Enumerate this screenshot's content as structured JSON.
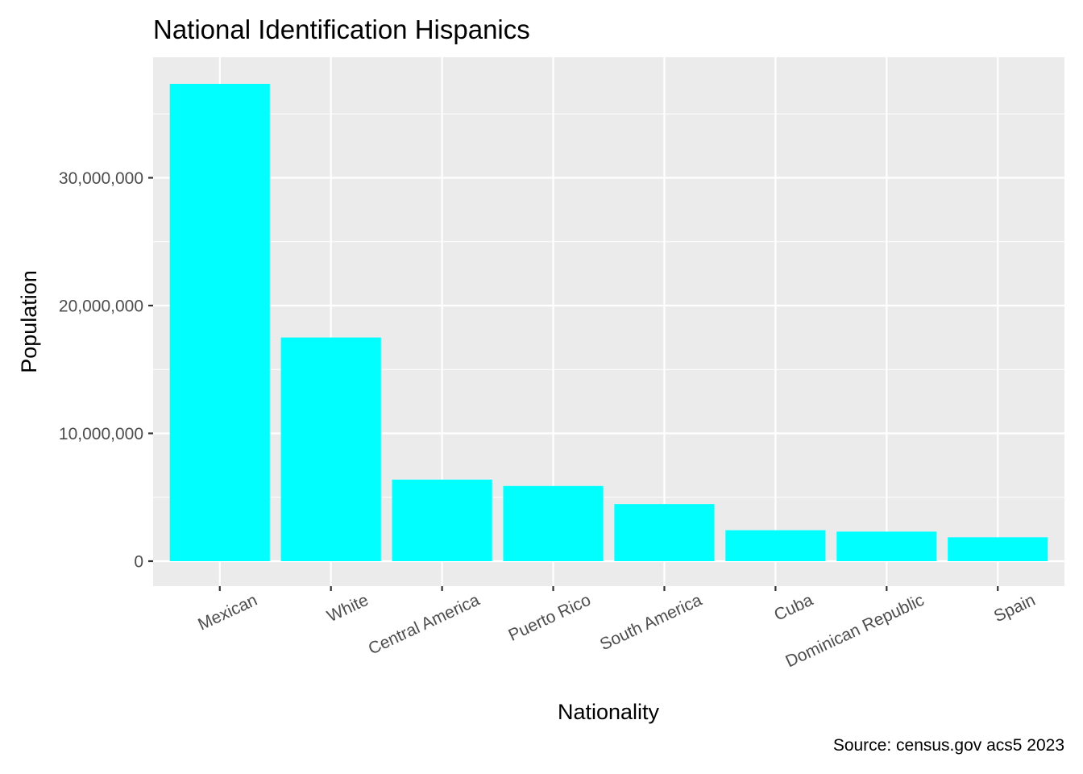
{
  "chart_data": {
    "type": "bar",
    "title": "National Identification Hispanics",
    "xlabel": "Nationality",
    "ylabel": "Population",
    "caption": "Source: census.gov acs5 2023",
    "categories": [
      "Mexican",
      "White",
      "Central America",
      "Puerto Rico",
      "South America",
      "Cuba",
      "Dominican Republic",
      "Spain"
    ],
    "values": [
      37350000,
      17500000,
      6380000,
      5880000,
      4470000,
      2420000,
      2310000,
      1870000
    ],
    "ylim": [
      0,
      39300000
    ],
    "yticks": [
      0,
      10000000,
      20000000,
      30000000
    ],
    "ytick_labels": [
      "0",
      "10,000,000",
      "20,000,000",
      "30,000,000"
    ],
    "grid": true,
    "legend": "none",
    "bar_color": "#00FFFF",
    "panel_color": "#EBEBEB",
    "grid_color": "#FFFFFF"
  }
}
